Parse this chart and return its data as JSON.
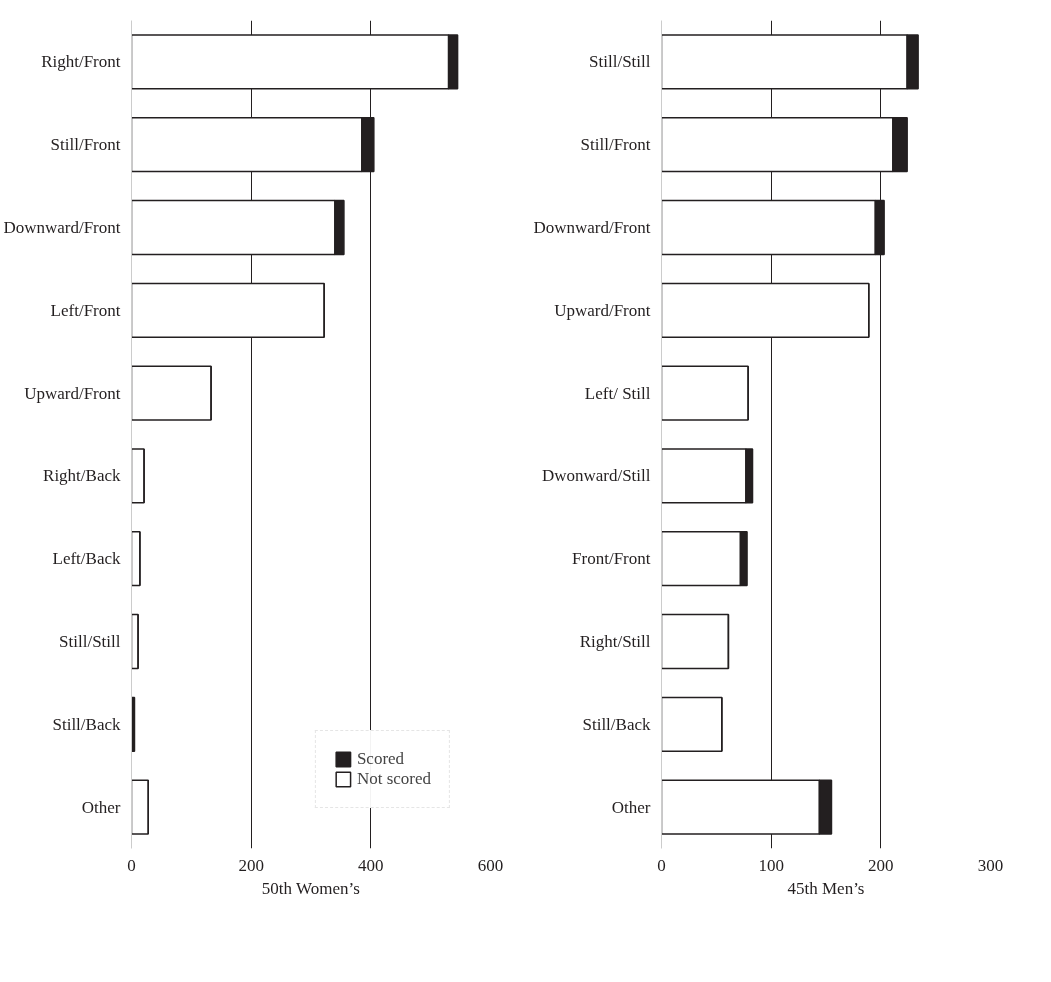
{
  "chart_data": [
    {
      "type": "bar",
      "orientation": "horizontal",
      "stacked": true,
      "xlabel": "50th Women’s",
      "categories": [
        "Right/Front",
        "Still/Front",
        "Downward/Front",
        "Left/Front",
        "Upward/Front",
        "Right/Back",
        "Left/Back",
        "Still/Still",
        "Still/Back",
        "Other"
      ],
      "series": [
        {
          "name": "Not scored",
          "color": "#ffffff",
          "values": [
            530,
            385,
            340,
            322,
            133,
            21,
            14,
            11,
            0,
            28
          ]
        },
        {
          "name": "Scored",
          "color": "#231f20",
          "values": [
            15,
            20,
            15,
            0,
            0,
            0,
            0,
            0,
            5,
            0
          ]
        }
      ],
      "xlim": [
        0,
        600
      ],
      "xticks": [
        0,
        200,
        400,
        600
      ],
      "grid": "x",
      "legend": "bottom right"
    },
    {
      "type": "bar",
      "orientation": "horizontal",
      "stacked": true,
      "xlabel": "45th Men’s",
      "categories": [
        "Still/Still",
        "Still/Front",
        "Downward/Front",
        "Upward/Front",
        "Left/ Still",
        "Dwonward/Still",
        "Front/Front",
        "Right/Still",
        "Still/Back",
        "Other"
      ],
      "series": [
        {
          "color": "#ffffff",
          "values": [
            224,
            211,
            195,
            189,
            79,
            77,
            72,
            61,
            55,
            144
          ]
        },
        {
          "color": "#231f20",
          "values": [
            10,
            13,
            8,
            0,
            0,
            6,
            6,
            0,
            0,
            11
          ]
        }
      ],
      "xlim": [
        0,
        300
      ],
      "xticks": [
        0,
        100,
        200,
        300
      ],
      "grid": "x"
    }
  ]
}
